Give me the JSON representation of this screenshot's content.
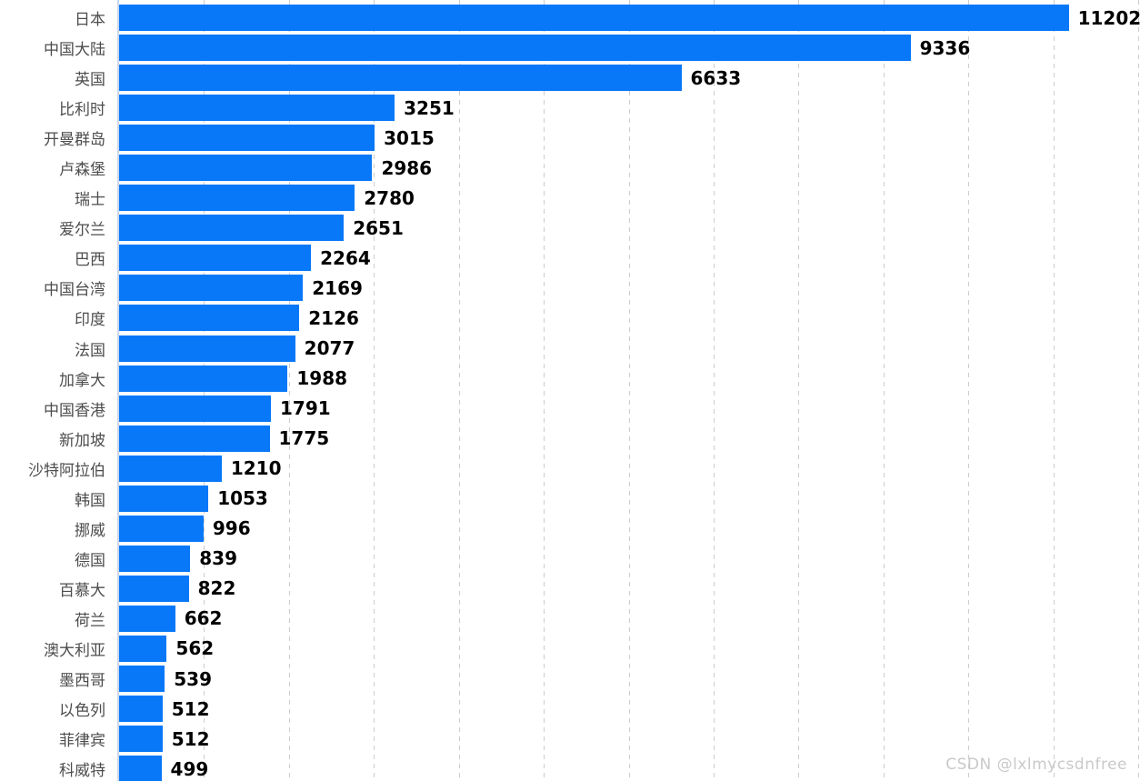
{
  "chart_data": {
    "type": "bar",
    "orientation": "horizontal",
    "title": "",
    "xlabel": "",
    "ylabel": "",
    "xlim": [
      0,
      12000
    ],
    "gridline_step": 1000,
    "grid": "vertical-dashed",
    "legend_position": "none",
    "categories": [
      "日本",
      "中国大陆",
      "英国",
      "比利时",
      "开曼群岛",
      "卢森堡",
      "瑞士",
      "爱尔兰",
      "巴西",
      "中国台湾",
      "印度",
      "法国",
      "加拿大",
      "中国香港",
      "新加坡",
      "沙特阿拉伯",
      "韩国",
      "挪威",
      "德国",
      "百慕大",
      "荷兰",
      "澳大利亚",
      "墨西哥",
      "以色列",
      "菲律宾",
      "科威特"
    ],
    "values": [
      11202,
      9336,
      6633,
      3251,
      3015,
      2986,
      2780,
      2651,
      2264,
      2169,
      2126,
      2077,
      1988,
      1791,
      1775,
      1210,
      1053,
      996,
      839,
      822,
      662,
      562,
      539,
      512,
      512,
      499
    ]
  },
  "watermark": {
    "text": "CSDN @lxlmycsdnfree"
  },
  "colors": {
    "bar": "#0878F8",
    "axis_line": "#ccd6eb",
    "gridline": "#cccccc",
    "category_label": "#4d4d4d",
    "value_label": "#000000",
    "watermark": "#c9c9c9",
    "background": "#ffffff"
  }
}
